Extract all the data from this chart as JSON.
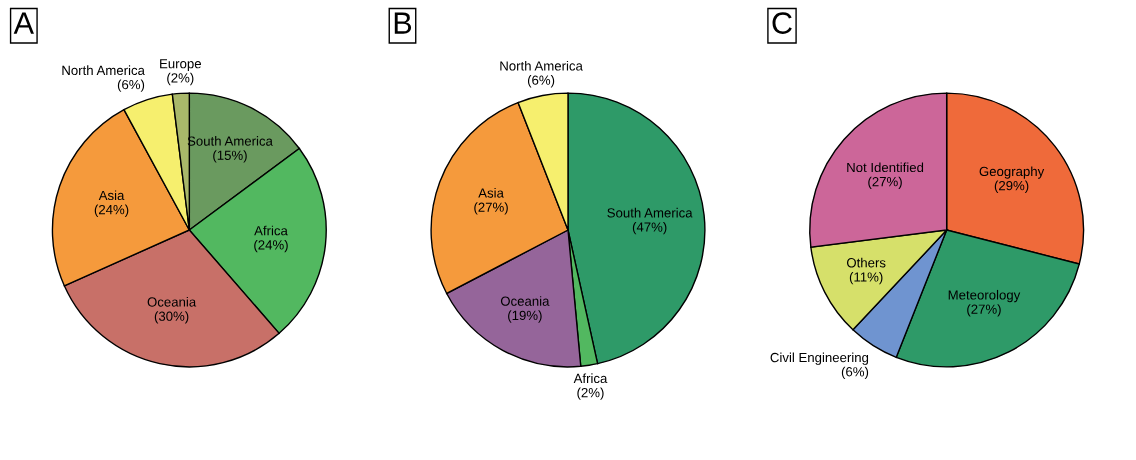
{
  "chart_data": [
    {
      "type": "pie",
      "title": "A",
      "categories": [
        "South America",
        "Africa",
        "Oceania",
        "Asia",
        "North America",
        "Europe"
      ],
      "values": [
        15,
        24,
        30,
        24,
        6,
        2
      ],
      "value_labels": [
        "(15%)",
        "(24%)",
        "(30%)",
        "(24%)",
        "(6%)",
        "(2%)"
      ],
      "colors": [
        "#6a9a5f",
        "#52b860",
        "#c87068",
        "#f59a3c",
        "#f6ef6e",
        "#a9b86a"
      ]
    },
    {
      "type": "pie",
      "title": "B",
      "categories": [
        "South America",
        "Africa",
        "Oceania",
        "Asia",
        "North America"
      ],
      "values": [
        47,
        2,
        19,
        27,
        6
      ],
      "value_labels": [
        "(47%)",
        "(2%)",
        "(19%)",
        "(27%)",
        "(6%)"
      ],
      "colors": [
        "#2e9a68",
        "#52b860",
        "#95659a",
        "#f59a3c",
        "#f6ef6e"
      ]
    },
    {
      "type": "pie",
      "title": "C",
      "categories": [
        "Geography",
        "Meteorology",
        "Civil Engineering",
        "Others",
        "Not Identified"
      ],
      "values": [
        29,
        27,
        6,
        11,
        27
      ],
      "value_labels": [
        "(29%)",
        "(27%)",
        "(6%)",
        "(11%)",
        "(27%)"
      ],
      "colors": [
        "#ef6a3a",
        "#2e9a68",
        "#6f94d0",
        "#d6e06a",
        "#cc6699"
      ]
    }
  ]
}
